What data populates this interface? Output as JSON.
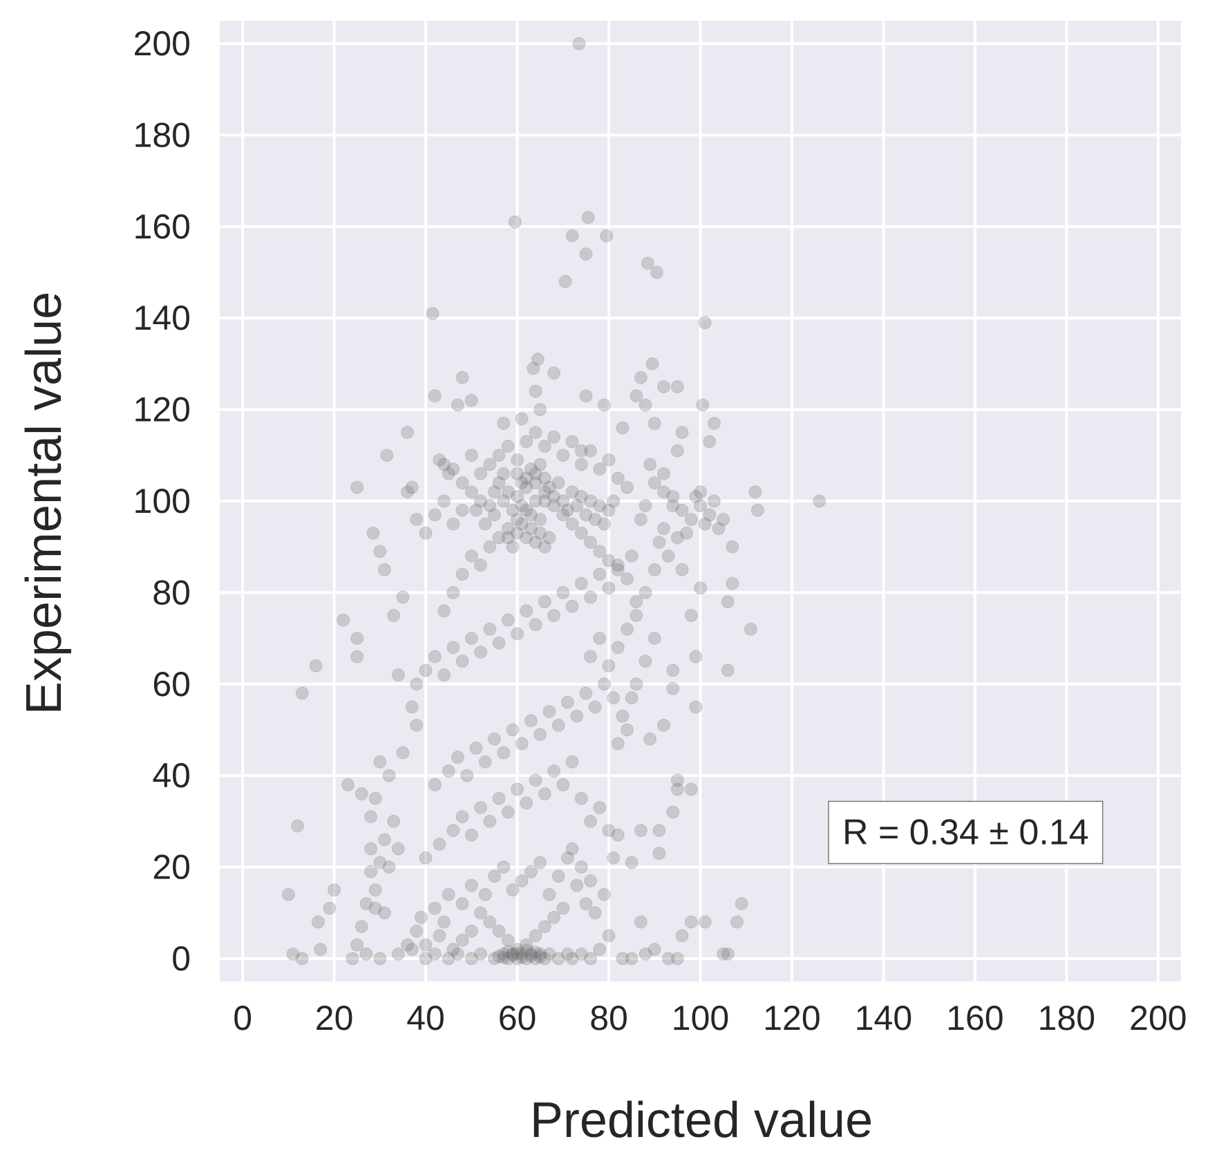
{
  "chart_data": {
    "type": "scatter",
    "xlabel": "Predicted value",
    "ylabel": "Experimental value",
    "xlim": [
      -5,
      205
    ],
    "ylim": [
      -5,
      205
    ],
    "xticks": [
      "0",
      "20",
      "40",
      "60",
      "80",
      "100",
      "120",
      "140",
      "160",
      "180",
      "200"
    ],
    "yticks": [
      "0",
      "20",
      "40",
      "60",
      "80",
      "100",
      "120",
      "140",
      "160",
      "180",
      "200"
    ],
    "grid": true,
    "background_color": "#EAEAF2",
    "grid_color": "#FFFFFF",
    "point_color": "#6E6E6E",
    "point_alpha": 0.28,
    "annotation": {
      "text": "R = 0.34 ± 0.14",
      "position": "lower-right",
      "anchor": [
        128,
        25
      ]
    },
    "points": [
      [
        73.5,
        200
      ],
      [
        75.5,
        162
      ],
      [
        59.5,
        161
      ],
      [
        72,
        158
      ],
      [
        79.5,
        158
      ],
      [
        75,
        154
      ],
      [
        88.5,
        152
      ],
      [
        90.5,
        150
      ],
      [
        70.5,
        148
      ],
      [
        41.5,
        141
      ],
      [
        101,
        139
      ],
      [
        64.5,
        131
      ],
      [
        63.5,
        129
      ],
      [
        89.5,
        130
      ],
      [
        68,
        128
      ],
      [
        87,
        127
      ],
      [
        48,
        127
      ],
      [
        92,
        125
      ],
      [
        95,
        125
      ],
      [
        64,
        124
      ],
      [
        86,
        123
      ],
      [
        42,
        123
      ],
      [
        50,
        122
      ],
      [
        75,
        123
      ],
      [
        47,
        121
      ],
      [
        100.5,
        121
      ],
      [
        88,
        121
      ],
      [
        79,
        121
      ],
      [
        65,
        120
      ],
      [
        61,
        118
      ],
      [
        83,
        116
      ],
      [
        90,
        117
      ],
      [
        103,
        117
      ],
      [
        57,
        117
      ],
      [
        36,
        115
      ],
      [
        96,
        115
      ],
      [
        102,
        113
      ],
      [
        95,
        111
      ],
      [
        74,
        111
      ],
      [
        31.5,
        110
      ],
      [
        44,
        108
      ],
      [
        92,
        106
      ],
      [
        37,
        103
      ],
      [
        25,
        103
      ],
      [
        112,
        102
      ],
      [
        100,
        102
      ],
      [
        126,
        100
      ],
      [
        112.5,
        98
      ],
      [
        105,
        96
      ],
      [
        104,
        94
      ],
      [
        107,
        90
      ],
      [
        96,
        85
      ],
      [
        100,
        81
      ],
      [
        107,
        82
      ],
      [
        106,
        78
      ],
      [
        111,
        72
      ],
      [
        98,
        75
      ],
      [
        28.5,
        93
      ],
      [
        30,
        89
      ],
      [
        31,
        85
      ],
      [
        22,
        74
      ],
      [
        25,
        70
      ],
      [
        25,
        66
      ],
      [
        16,
        64
      ],
      [
        13,
        58
      ],
      [
        99,
        66
      ],
      [
        94,
        63
      ],
      [
        106,
        63
      ],
      [
        99,
        55
      ],
      [
        92,
        51
      ],
      [
        89,
        48
      ],
      [
        94,
        59
      ],
      [
        95,
        39
      ],
      [
        95,
        37
      ],
      [
        98,
        37
      ],
      [
        94,
        32
      ],
      [
        91,
        28
      ],
      [
        91,
        23
      ],
      [
        98,
        8
      ],
      [
        101,
        8
      ],
      [
        96,
        5
      ],
      [
        108,
        8
      ],
      [
        109,
        12
      ],
      [
        106,
        1
      ],
      [
        105,
        1
      ],
      [
        93,
        0
      ],
      [
        95,
        0
      ],
      [
        10,
        14
      ],
      [
        12,
        29
      ],
      [
        11,
        1
      ],
      [
        13,
        0
      ],
      [
        17,
        2
      ],
      [
        16.5,
        8
      ],
      [
        19,
        11
      ],
      [
        20,
        15
      ],
      [
        23,
        38
      ],
      [
        26,
        36
      ],
      [
        28,
        31
      ],
      [
        29,
        11
      ],
      [
        28,
        19
      ],
      [
        82,
        27
      ],
      [
        85,
        21
      ],
      [
        87,
        28
      ],
      [
        87,
        8
      ],
      [
        90,
        2
      ],
      [
        85,
        0
      ],
      [
        88,
        1
      ],
      [
        80,
        5
      ],
      [
        83,
        0
      ],
      [
        81,
        22
      ],
      [
        82,
        47
      ],
      [
        83,
        53
      ],
      [
        84,
        50
      ],
      [
        85,
        57
      ],
      [
        86,
        60
      ],
      [
        88,
        65
      ],
      [
        90,
        70
      ],
      [
        86,
        75
      ],
      [
        88,
        80
      ],
      [
        85,
        88
      ],
      [
        90,
        85
      ],
      [
        92,
        94
      ],
      [
        94,
        99
      ],
      [
        96,
        98
      ],
      [
        98,
        96
      ],
      [
        101,
        95
      ],
      [
        100,
        99
      ],
      [
        103,
        100
      ],
      [
        97,
        93
      ],
      [
        93,
        88
      ],
      [
        91,
        91
      ],
      [
        94,
        101
      ],
      [
        90,
        104
      ],
      [
        88,
        99
      ],
      [
        89,
        108
      ],
      [
        92,
        102
      ],
      [
        87,
        96
      ],
      [
        95,
        92
      ],
      [
        99,
        101
      ],
      [
        102,
        97
      ],
      [
        35,
        79
      ],
      [
        33,
        75
      ],
      [
        34,
        62
      ],
      [
        37,
        55
      ],
      [
        38,
        51
      ],
      [
        35,
        45
      ],
      [
        32,
        40
      ],
      [
        30,
        43
      ],
      [
        29,
        35
      ],
      [
        33,
        30
      ],
      [
        31,
        26
      ],
      [
        34,
        24
      ],
      [
        32,
        20
      ],
      [
        30,
        21
      ],
      [
        28,
        24
      ],
      [
        29,
        15
      ],
      [
        31,
        10
      ],
      [
        27,
        12
      ],
      [
        26,
        7
      ],
      [
        25,
        3
      ],
      [
        24,
        0
      ],
      [
        27,
        1
      ],
      [
        30,
        0
      ],
      [
        34,
        1
      ],
      [
        37,
        2
      ],
      [
        40,
        0
      ],
      [
        42,
        1
      ],
      [
        45,
        0
      ],
      [
        47,
        1
      ],
      [
        50,
        0
      ],
      [
        52,
        1
      ],
      [
        55,
        0
      ],
      [
        57,
        1
      ],
      [
        58,
        0
      ],
      [
        59,
        1
      ],
      [
        60,
        0
      ],
      [
        61,
        1
      ],
      [
        62,
        0
      ],
      [
        63,
        1
      ],
      [
        64,
        0
      ],
      [
        65,
        1
      ],
      [
        66,
        0
      ],
      [
        67,
        1
      ],
      [
        69,
        0
      ],
      [
        71,
        1
      ],
      [
        72,
        0
      ],
      [
        74,
        1
      ],
      [
        76,
        0
      ],
      [
        78,
        2
      ],
      [
        56,
        0.5
      ],
      [
        57,
        0.2
      ],
      [
        58,
        1.5
      ],
      [
        59,
        0.8
      ],
      [
        60,
        1.2
      ],
      [
        61,
        0.3
      ],
      [
        62,
        1.8
      ],
      [
        63,
        0.6
      ],
      [
        64,
        1.4
      ],
      [
        65,
        0.4
      ],
      [
        60,
        2
      ],
      [
        62,
        3
      ],
      [
        58,
        4
      ],
      [
        64,
        5
      ],
      [
        56,
        6
      ],
      [
        66,
        7
      ],
      [
        54,
        8
      ],
      [
        68,
        9
      ],
      [
        52,
        10
      ],
      [
        70,
        11
      ],
      [
        40,
        3
      ],
      [
        43,
        5
      ],
      [
        46,
        2
      ],
      [
        48,
        4
      ],
      [
        50,
        6
      ],
      [
        44,
        8
      ],
      [
        38,
        6
      ],
      [
        36,
        3
      ],
      [
        39,
        9
      ],
      [
        42,
        11
      ],
      [
        45,
        14
      ],
      [
        48,
        12
      ],
      [
        50,
        16
      ],
      [
        53,
        14
      ],
      [
        55,
        18
      ],
      [
        57,
        20
      ],
      [
        59,
        15
      ],
      [
        61,
        17
      ],
      [
        63,
        19
      ],
      [
        65,
        21
      ],
      [
        67,
        14
      ],
      [
        69,
        18
      ],
      [
        71,
        22
      ],
      [
        73,
        16
      ],
      [
        75,
        12
      ],
      [
        77,
        10
      ],
      [
        79,
        14
      ],
      [
        76,
        17
      ],
      [
        74,
        20
      ],
      [
        72,
        24
      ],
      [
        40,
        22
      ],
      [
        43,
        25
      ],
      [
        46,
        28
      ],
      [
        48,
        31
      ],
      [
        50,
        27
      ],
      [
        52,
        33
      ],
      [
        54,
        30
      ],
      [
        56,
        35
      ],
      [
        58,
        32
      ],
      [
        60,
        37
      ],
      [
        62,
        34
      ],
      [
        64,
        39
      ],
      [
        66,
        36
      ],
      [
        68,
        41
      ],
      [
        70,
        38
      ],
      [
        72,
        43
      ],
      [
        74,
        35
      ],
      [
        76,
        30
      ],
      [
        78,
        33
      ],
      [
        80,
        28
      ],
      [
        42,
        38
      ],
      [
        45,
        41
      ],
      [
        47,
        44
      ],
      [
        49,
        40
      ],
      [
        51,
        46
      ],
      [
        53,
        43
      ],
      [
        55,
        48
      ],
      [
        57,
        45
      ],
      [
        59,
        50
      ],
      [
        61,
        47
      ],
      [
        63,
        52
      ],
      [
        65,
        49
      ],
      [
        67,
        54
      ],
      [
        69,
        51
      ],
      [
        71,
        56
      ],
      [
        73,
        53
      ],
      [
        75,
        58
      ],
      [
        77,
        55
      ],
      [
        79,
        60
      ],
      [
        81,
        57
      ],
      [
        38,
        60
      ],
      [
        40,
        63
      ],
      [
        42,
        66
      ],
      [
        44,
        62
      ],
      [
        46,
        68
      ],
      [
        48,
        65
      ],
      [
        50,
        70
      ],
      [
        52,
        67
      ],
      [
        54,
        72
      ],
      [
        56,
        69
      ],
      [
        58,
        74
      ],
      [
        60,
        71
      ],
      [
        62,
        76
      ],
      [
        64,
        73
      ],
      [
        66,
        78
      ],
      [
        68,
        75
      ],
      [
        70,
        80
      ],
      [
        72,
        77
      ],
      [
        74,
        82
      ],
      [
        76,
        79
      ],
      [
        78,
        84
      ],
      [
        80,
        81
      ],
      [
        82,
        86
      ],
      [
        84,
        83
      ],
      [
        86,
        78
      ],
      [
        84,
        72
      ],
      [
        82,
        68
      ],
      [
        80,
        64
      ],
      [
        78,
        70
      ],
      [
        76,
        66
      ],
      [
        44,
        76
      ],
      [
        46,
        80
      ],
      [
        48,
        84
      ],
      [
        50,
        88
      ],
      [
        52,
        86
      ],
      [
        54,
        90
      ],
      [
        56,
        92
      ],
      [
        58,
        94
      ],
      [
        60,
        96
      ],
      [
        62,
        98
      ],
      [
        64,
        100
      ],
      [
        66,
        102
      ],
      [
        68,
        99
      ],
      [
        70,
        97
      ],
      [
        72,
        95
      ],
      [
        74,
        93
      ],
      [
        76,
        91
      ],
      [
        78,
        89
      ],
      [
        80,
        87
      ],
      [
        82,
        85
      ],
      [
        57,
        100
      ],
      [
        58,
        102
      ],
      [
        59,
        98
      ],
      [
        60,
        101
      ],
      [
        61,
        99
      ],
      [
        62,
        103
      ],
      [
        63,
        97
      ],
      [
        64,
        104
      ],
      [
        65,
        96
      ],
      [
        66,
        100
      ],
      [
        60,
        93
      ],
      [
        61,
        95
      ],
      [
        62,
        92
      ],
      [
        63,
        94
      ],
      [
        64,
        91
      ],
      [
        65,
        93
      ],
      [
        66,
        90
      ],
      [
        67,
        92
      ],
      [
        59,
        90
      ],
      [
        58,
        92
      ],
      [
        62,
        105
      ],
      [
        63,
        107
      ],
      [
        64,
        106
      ],
      [
        61,
        104
      ],
      [
        65,
        108
      ],
      [
        60,
        106
      ],
      [
        66,
        105
      ],
      [
        67,
        103
      ],
      [
        68,
        101
      ],
      [
        69,
        104
      ],
      [
        55,
        97
      ],
      [
        54,
        99
      ],
      [
        53,
        95
      ],
      [
        52,
        100
      ],
      [
        51,
        98
      ],
      [
        56,
        104
      ],
      [
        57,
        106
      ],
      [
        55,
        102
      ],
      [
        70,
        100
      ],
      [
        71,
        98
      ],
      [
        72,
        102
      ],
      [
        73,
        99
      ],
      [
        74,
        101
      ],
      [
        75,
        97
      ],
      [
        76,
        100
      ],
      [
        77,
        96
      ],
      [
        78,
        99
      ],
      [
        79,
        95
      ],
      [
        80,
        98
      ],
      [
        81,
        100
      ],
      [
        50,
        102
      ],
      [
        48,
        98
      ],
      [
        46,
        95
      ],
      [
        44,
        100
      ],
      [
        42,
        97
      ],
      [
        40,
        93
      ],
      [
        38,
        96
      ],
      [
        36,
        102
      ],
      [
        45,
        106
      ],
      [
        43,
        109
      ],
      [
        66,
        112
      ],
      [
        68,
        114
      ],
      [
        70,
        110
      ],
      [
        72,
        113
      ],
      [
        74,
        108
      ],
      [
        76,
        111
      ],
      [
        78,
        107
      ],
      [
        80,
        109
      ],
      [
        82,
        105
      ],
      [
        84,
        103
      ],
      [
        56,
        110
      ],
      [
        58,
        112
      ],
      [
        60,
        109
      ],
      [
        62,
        113
      ],
      [
        64,
        115
      ],
      [
        54,
        108
      ],
      [
        52,
        106
      ],
      [
        50,
        110
      ],
      [
        48,
        104
      ],
      [
        46,
        107
      ]
    ]
  }
}
